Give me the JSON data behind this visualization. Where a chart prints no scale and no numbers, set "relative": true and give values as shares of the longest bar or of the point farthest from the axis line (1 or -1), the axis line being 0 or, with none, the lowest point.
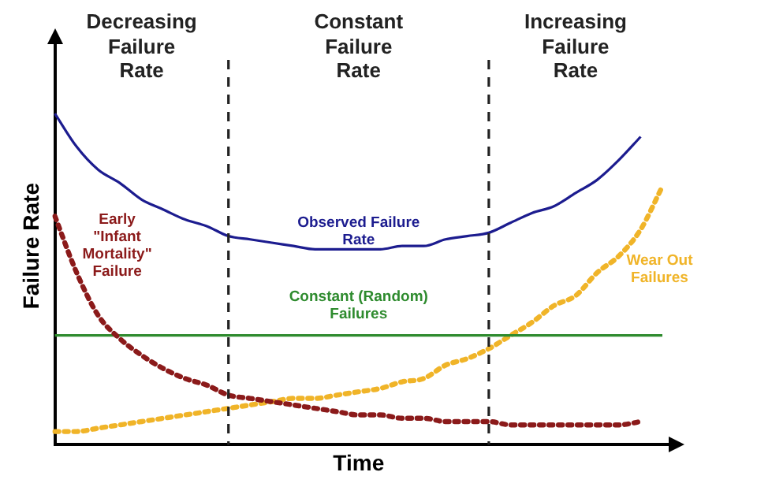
{
  "chart_data": {
    "type": "line",
    "relative": true,
    "xlabel": "Time",
    "ylabel": "Failure Rate",
    "categories": [
      null,
      null,
      null,
      null,
      null,
      null,
      null,
      null,
      null,
      null,
      null,
      null,
      null,
      null,
      null,
      null,
      null,
      null,
      null,
      null,
      null,
      null,
      null,
      null,
      null,
      null,
      null,
      null,
      null
    ],
    "series": [
      {
        "name": "Observed Failure Rate",
        "color": "#1c1c8f",
        "line_style": "solid",
        "values": [
          1.0,
          0.9,
          0.83,
          0.79,
          0.74,
          0.71,
          0.68,
          0.66,
          0.63,
          0.62,
          0.61,
          0.6,
          0.59,
          0.59,
          0.59,
          0.59,
          0.6,
          0.6,
          0.62,
          0.63,
          0.64,
          0.67,
          0.7,
          0.72,
          0.76,
          0.8,
          0.86,
          0.93,
          null
        ]
      },
      {
        "name": "Early \"Infant Mortality\" Failure",
        "color": "#8b1a1a",
        "line_style": "dotted",
        "values": [
          0.69,
          0.52,
          0.39,
          0.32,
          0.27,
          0.23,
          0.2,
          0.18,
          0.15,
          0.14,
          0.13,
          0.12,
          0.11,
          0.1,
          0.09,
          0.09,
          0.08,
          0.08,
          0.07,
          0.07,
          0.07,
          0.06,
          0.06,
          0.06,
          0.06,
          0.06,
          0.06,
          0.07,
          null
        ]
      },
      {
        "name": "Constant (Random) Failures",
        "color": "#2e8b2e",
        "line_style": "solid",
        "values": [
          0.33,
          0.33,
          0.33,
          0.33,
          0.33,
          0.33,
          0.33,
          0.33,
          0.33,
          0.33,
          0.33,
          0.33,
          0.33,
          0.33,
          0.33,
          0.33,
          0.33,
          0.33,
          0.33,
          0.33,
          0.33,
          0.33,
          0.33,
          0.33,
          0.33,
          0.33,
          0.33,
          0.33,
          0.33
        ]
      },
      {
        "name": "Wear Out Failures",
        "color": "#f0b428",
        "line_style": "dotted",
        "values": [
          0.04,
          0.04,
          0.05,
          0.06,
          0.07,
          0.08,
          0.09,
          0.1,
          0.11,
          0.12,
          0.13,
          0.14,
          0.14,
          0.15,
          0.16,
          0.17,
          0.19,
          0.2,
          0.24,
          0.26,
          0.29,
          0.33,
          0.37,
          0.42,
          0.45,
          0.52,
          0.57,
          0.65,
          0.78
        ]
      }
    ],
    "annotations": [
      "Decreasing Failure Rate",
      "Constant Failure Rate",
      "Increasing Failure Rate"
    ],
    "legend": false
  }
}
